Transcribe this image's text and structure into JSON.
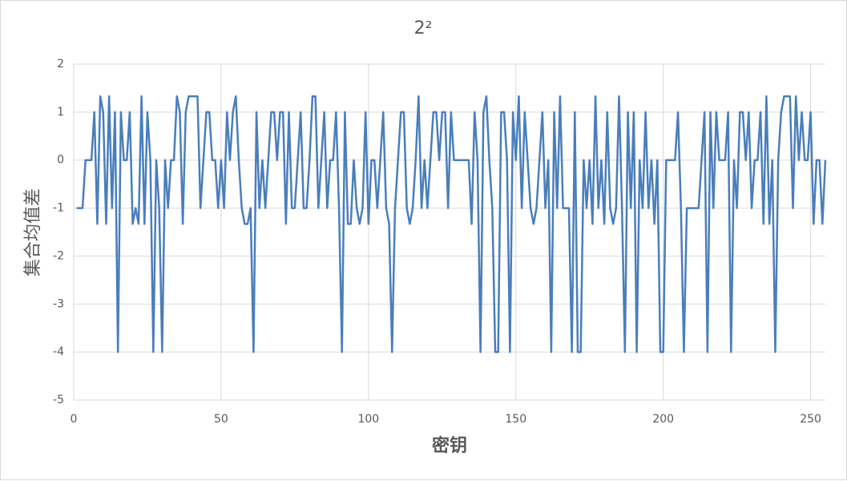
{
  "chart_data": {
    "type": "line",
    "title": "2²",
    "x_label": "密钥",
    "y_label": "集合均值差",
    "xlim": [
      0,
      255
    ],
    "xticks": [
      0,
      50,
      100,
      150,
      200,
      250
    ],
    "ylim": [
      -5,
      2
    ],
    "yticks": [
      -5,
      -4,
      -3,
      -2,
      -1,
      0,
      1,
      2
    ],
    "grid": true,
    "series": [
      {
        "color": "#4a7ebb",
        "x": [
          1,
          2,
          3,
          4,
          5,
          6,
          7,
          8,
          9,
          10,
          11,
          12,
          13,
          14,
          15,
          16,
          17,
          18,
          19,
          20,
          21,
          22,
          23,
          24,
          25,
          26,
          27,
          28,
          29,
          30,
          31,
          32,
          33,
          34,
          35,
          36,
          37,
          38,
          39,
          40,
          41,
          42,
          43,
          44,
          45,
          46,
          47,
          48,
          49,
          50,
          51,
          52,
          53,
          54,
          55,
          56,
          57,
          58,
          59,
          60,
          61,
          62,
          63,
          64,
          65,
          66,
          67,
          68,
          69,
          70,
          71,
          72,
          73,
          74,
          75,
          76,
          77,
          78,
          79,
          80,
          81,
          82,
          83,
          84,
          85,
          86,
          87,
          88,
          89,
          90,
          91,
          92,
          93,
          94,
          95,
          96,
          97,
          98,
          99,
          100,
          101,
          102,
          103,
          104,
          105,
          106,
          107,
          108,
          109,
          110,
          111,
          112,
          113,
          114,
          115,
          116,
          117,
          118,
          119,
          120,
          121,
          122,
          123,
          124,
          125,
          126,
          127,
          128,
          129,
          130,
          131,
          132,
          133,
          134,
          135,
          136,
          137,
          138,
          139,
          140,
          141,
          142,
          143,
          144,
          145,
          146,
          147,
          148,
          149,
          150,
          151,
          152,
          153,
          154,
          155,
          156,
          157,
          158,
          159,
          160,
          161,
          162,
          163,
          164,
          165,
          166,
          167,
          168,
          169,
          170,
          171,
          172,
          173,
          174,
          175,
          176,
          177,
          178,
          179,
          180,
          181,
          182,
          183,
          184,
          185,
          186,
          187,
          188,
          189,
          190,
          191,
          192,
          193,
          194,
          195,
          196,
          197,
          198,
          199,
          200,
          201,
          202,
          203,
          204,
          205,
          206,
          207,
          208,
          209,
          210,
          211,
          212,
          213,
          214,
          215,
          216,
          217,
          218,
          219,
          220,
          221,
          222,
          223,
          224,
          225,
          226,
          227,
          228,
          229,
          230,
          231,
          232,
          233,
          234,
          235,
          236,
          237,
          238,
          239,
          240,
          241,
          242,
          243,
          244,
          245,
          246,
          247,
          248,
          249,
          250,
          251,
          252,
          253,
          254,
          255
        ],
        "values": [
          -1,
          -1,
          -1,
          0,
          0,
          0,
          1,
          -1.33,
          1.33,
          1,
          -1.33,
          1.33,
          -1,
          1,
          -4,
          1,
          0,
          0,
          1,
          -1.33,
          -1,
          -1.33,
          1.33,
          -1.33,
          1,
          0,
          -4,
          0,
          -1,
          -4,
          0,
          -1,
          0,
          0,
          1.33,
          1,
          -1.33,
          1,
          1.33,
          1.33,
          1.33,
          1.33,
          -1,
          0,
          1,
          1,
          0,
          0,
          -1,
          0,
          -1,
          1,
          0,
          1,
          1.33,
          0,
          -1,
          -1.33,
          -1.33,
          -1,
          -4,
          1,
          -1,
          0,
          -1,
          0,
          1,
          1,
          0,
          1,
          1,
          -1.33,
          1,
          -1,
          -1,
          0,
          1,
          -1,
          -1,
          0,
          1.33,
          1.33,
          -1,
          0,
          1,
          -1,
          0,
          0,
          1,
          -1,
          -4,
          1,
          -1.33,
          -1.33,
          0,
          -1,
          -1.33,
          -1,
          1,
          -1.33,
          0,
          0,
          -1,
          0,
          1,
          -1,
          -1.33,
          -4,
          -1,
          0,
          1,
          1,
          -1,
          -1.33,
          -1,
          0,
          1.33,
          -1,
          0,
          -1,
          0,
          1,
          1,
          0,
          1,
          1,
          -1,
          1,
          0,
          0,
          0,
          0,
          0,
          0,
          -1.33,
          1,
          0,
          -4,
          1,
          1.33,
          0,
          -1,
          -4,
          -4,
          1,
          1,
          0,
          -4,
          1,
          0,
          1.33,
          -1,
          1,
          0,
          -1,
          -1.33,
          -1,
          0,
          1,
          -1,
          0,
          -4,
          1,
          -1,
          1.33,
          -1,
          -1,
          -1,
          -4,
          1,
          -4,
          -4,
          0,
          -1,
          0,
          -1.33,
          1.33,
          -1,
          0,
          -1.33,
          1,
          -1,
          -1.33,
          -1,
          1.33,
          -1,
          -4,
          1,
          -1,
          1,
          -4,
          0,
          -1,
          1,
          -1,
          0,
          -1.33,
          0,
          -4,
          -4,
          0,
          0,
          0,
          0,
          1,
          -1,
          -4,
          -1,
          -1,
          -1,
          -1,
          -1,
          0,
          1,
          -4,
          1,
          -1,
          1,
          0,
          0,
          0,
          1,
          -4,
          0,
          -1,
          1,
          1,
          0,
          1,
          -1,
          0,
          0,
          1,
          -1.33,
          1.33,
          -1.33,
          0,
          -4,
          0,
          1,
          1.33,
          1.33,
          1.33,
          -1,
          1.33,
          0,
          1,
          0,
          0,
          1,
          -1.33,
          0,
          0,
          -1.33,
          0
        ]
      }
    ]
  }
}
